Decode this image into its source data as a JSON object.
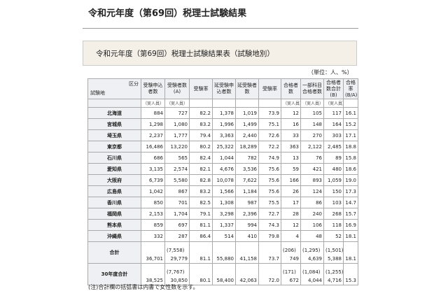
{
  "header": {
    "title": "令和元年度（第69回）税理士試験結果"
  },
  "box": {
    "title": "令和元年度（第69回）税理士試験結果表（試験地別）"
  },
  "unit": "（単位：人、%）",
  "table": {
    "corner": [
      "区分",
      "試験地"
    ],
    "columns": [
      "受験申込者数",
      "受験者数(A)",
      "受験率",
      "延受験申込者数",
      "延受験者数",
      "受験率",
      "合格者数",
      "一部科目合格者数",
      "合格者数合計(B)",
      "合格率(B/A)"
    ],
    "unit_row": [
      "（実人員）",
      "（実人員）",
      null,
      null,
      null,
      null,
      "（実人員）",
      "（実人員）",
      "（実人員）",
      null
    ],
    "rows": [
      {
        "name": "北海道",
        "values": [
          "884",
          "727",
          "82.2",
          "1,378",
          "1,019",
          "73.9",
          "12",
          "105",
          "117",
          "16.1"
        ]
      },
      {
        "name": "宮城県",
        "values": [
          "1,298",
          "1,080",
          "83.2",
          "1,996",
          "1,499",
          "75.1",
          "16",
          "148",
          "164",
          "15.2"
        ]
      },
      {
        "name": "埼玉県",
        "values": [
          "2,237",
          "1,777",
          "79.4",
          "3,363",
          "2,440",
          "72.6",
          "33",
          "270",
          "303",
          "17.1"
        ]
      },
      {
        "name": "東京都",
        "values": [
          "16,486",
          "13,220",
          "80.2",
          "25,322",
          "18,289",
          "72.2",
          "363",
          "2,122",
          "2,485",
          "18.8"
        ]
      },
      {
        "name": "石川県",
        "values": [
          "686",
          "565",
          "82.4",
          "1,044",
          "782",
          "74.9",
          "13",
          "76",
          "89",
          "15.8"
        ]
      },
      {
        "name": "愛知県",
        "values": [
          "3,135",
          "2,574",
          "82.1",
          "4,676",
          "3,536",
          "75.6",
          "59",
          "421",
          "480",
          "18.6"
        ]
      },
      {
        "name": "大阪府",
        "values": [
          "6,739",
          "5,580",
          "82.8",
          "10,078",
          "7,622",
          "75.6",
          "166",
          "893",
          "1,059",
          "19.0"
        ]
      },
      {
        "name": "広島県",
        "values": [
          "1,042",
          "867",
          "83.2",
          "1,566",
          "1,184",
          "75.6",
          "26",
          "124",
          "150",
          "17.3"
        ]
      },
      {
        "name": "香川県",
        "values": [
          "850",
          "701",
          "82.5",
          "1,308",
          "987",
          "75.5",
          "17",
          "86",
          "103",
          "14.7"
        ]
      },
      {
        "name": "福岡県",
        "values": [
          "2,153",
          "1,704",
          "79.1",
          "3,298",
          "2,396",
          "72.7",
          "28",
          "240",
          "268",
          "15.7"
        ]
      },
      {
        "name": "熊本県",
        "values": [
          "859",
          "697",
          "81.1",
          "1,337",
          "994",
          "74.3",
          "12",
          "106",
          "118",
          "16.9"
        ]
      },
      {
        "name": "沖縄県",
        "values": [
          "332",
          "287",
          "86.4",
          "514",
          "410",
          "79.8",
          "4",
          "48",
          "52",
          "18.1"
        ]
      }
    ],
    "totals": [
      {
        "name": "合計",
        "paren": [
          null,
          "(7,558)",
          null,
          null,
          null,
          null,
          "(206)",
          "(1,295)",
          "(1,501)",
          null
        ],
        "values": [
          "36,701",
          "29,779",
          "81.1",
          "55,880",
          "41,158",
          "73.7",
          "749",
          "4,639",
          "5,388",
          "18.1"
        ]
      },
      {
        "name": "30年度合計",
        "paren": [
          null,
          "(7,767)",
          null,
          null,
          null,
          null,
          "(171)",
          "(1,084)",
          "(1,255)",
          null
        ],
        "values": [
          "38,525",
          "30,850",
          "80.1",
          "58,400",
          "42,063",
          "72.0",
          "672",
          "4,044",
          "4,716",
          "15.3"
        ]
      }
    ]
  },
  "note": "(注)合計欄の括弧書は内書で女性数を示す。"
}
